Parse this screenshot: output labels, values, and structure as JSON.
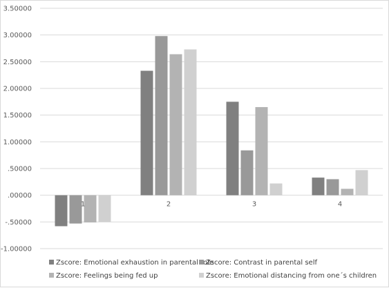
{
  "chart_data": {
    "type": "bar",
    "categories": [
      "1",
      "2",
      "3",
      "4"
    ],
    "series": [
      {
        "name": "Zscore:  Emotional exhaustion in parental role",
        "color": "#808080",
        "values": [
          -0.58,
          2.33,
          1.75,
          0.33
        ]
      },
      {
        "name": "Zscore:  Contrast in parental self",
        "color": "#999999",
        "values": [
          -0.53,
          2.98,
          0.84,
          0.3
        ]
      },
      {
        "name": "Zscore:  Feelings being fed up",
        "color": "#b3b3b3",
        "values": [
          -0.51,
          2.64,
          1.65,
          0.12
        ]
      },
      {
        "name": "Zscore:  Emotional distancing from one´s children",
        "color": "#d0d0d0",
        "values": [
          -0.5,
          2.73,
          0.22,
          0.47
        ]
      }
    ],
    "y_ticks": [
      "3.50000",
      "3.00000",
      "2.50000",
      "2.00000",
      "1.50000",
      "1.00000",
      ".50000",
      ".00000",
      "-.50000",
      "-1.00000"
    ],
    "ylim": [
      -1.0,
      3.5
    ],
    "grid": true,
    "legend_position": "bottom",
    "title": "",
    "xlabel": "",
    "ylabel": ""
  }
}
